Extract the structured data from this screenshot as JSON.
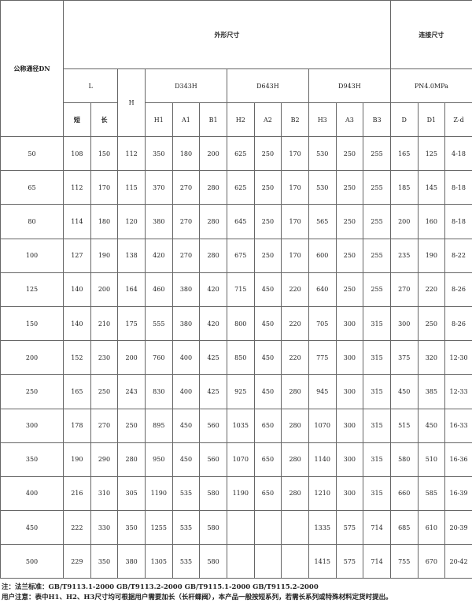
{
  "header": {
    "dn": "公称通径DN",
    "outline": "外形尺寸",
    "connection": "连接尺寸",
    "L": "L",
    "H": "H",
    "d343": "D343H",
    "d643": "D643H",
    "d943": "D943H",
    "pn": "PN4.0MPa",
    "sub": [
      "短",
      "长",
      "H1",
      "A1",
      "B1",
      "H2",
      "A2",
      "B2",
      "H3",
      "A3",
      "B3",
      "D",
      "D1",
      "Z-d"
    ]
  },
  "rows": [
    [
      "50",
      "108",
      "150",
      "112",
      "350",
      "180",
      "200",
      "625",
      "250",
      "170",
      "530",
      "250",
      "255",
      "165",
      "125",
      "4-18"
    ],
    [
      "65",
      "112",
      "170",
      "115",
      "370",
      "270",
      "280",
      "625",
      "250",
      "170",
      "530",
      "250",
      "255",
      "185",
      "145",
      "8-18"
    ],
    [
      "80",
      "114",
      "180",
      "120",
      "380",
      "270",
      "280",
      "645",
      "250",
      "170",
      "565",
      "250",
      "255",
      "200",
      "160",
      "8-18"
    ],
    [
      "100",
      "127",
      "190",
      "138",
      "420",
      "270",
      "280",
      "675",
      "250",
      "170",
      "600",
      "250",
      "255",
      "235",
      "190",
      "8-22"
    ],
    [
      "125",
      "140",
      "200",
      "164",
      "460",
      "380",
      "420",
      "715",
      "450",
      "220",
      "640",
      "250",
      "255",
      "270",
      "220",
      "8-26"
    ],
    [
      "150",
      "140",
      "210",
      "175",
      "555",
      "380",
      "420",
      "800",
      "450",
      "220",
      "705",
      "300",
      "315",
      "300",
      "250",
      "8-26"
    ],
    [
      "200",
      "152",
      "230",
      "200",
      "760",
      "400",
      "425",
      "850",
      "450",
      "220",
      "775",
      "300",
      "315",
      "375",
      "320",
      "12-30"
    ],
    [
      "250",
      "165",
      "250",
      "243",
      "830",
      "400",
      "425",
      "925",
      "450",
      "280",
      "945",
      "300",
      "315",
      "450",
      "385",
      "12-33"
    ],
    [
      "300",
      "178",
      "270",
      "250",
      "895",
      "450",
      "560",
      "1035",
      "650",
      "280",
      "1070",
      "300",
      "315",
      "515",
      "450",
      "16-33"
    ],
    [
      "350",
      "190",
      "290",
      "280",
      "950",
      "450",
      "560",
      "1070",
      "650",
      "280",
      "1140",
      "300",
      "315",
      "580",
      "510",
      "16-36"
    ],
    [
      "400",
      "216",
      "310",
      "305",
      "1190",
      "535",
      "580",
      "1190",
      "650",
      "280",
      "1210",
      "300",
      "315",
      "660",
      "585",
      "16-39"
    ],
    [
      "450",
      "222",
      "330",
      "350",
      "1255",
      "535",
      "580",
      "",
      "",
      "",
      "1335",
      "575",
      "714",
      "685",
      "610",
      "20-39"
    ],
    [
      "500",
      "229",
      "350",
      "380",
      "1305",
      "535",
      "580",
      "",
      "",
      "",
      "1415",
      "575",
      "714",
      "755",
      "670",
      "20-42"
    ]
  ],
  "notes": {
    "line1": "注：法兰标准：GB/T9113.1-2000   GB/T9113.2-2000   GB/T9115.1-2000   GB/T9115.2-2000",
    "line2": "用户注意：表中H1、H2、H3尺寸均可根据用户需要加长（长杆蝶阀），本产品一般按短系列，若需长系列或特殊材料定货时提出。"
  }
}
